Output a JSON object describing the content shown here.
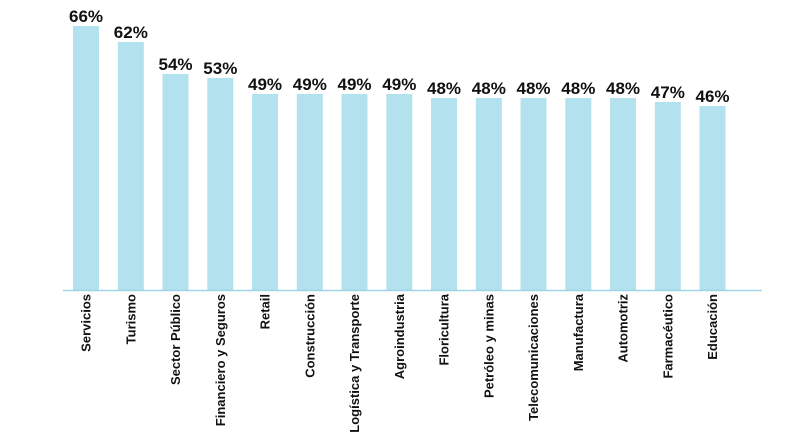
{
  "chart_data": {
    "type": "bar",
    "categories": [
      "Servicios",
      "Turismo",
      "Sector Público",
      "Financiero y Seguros",
      "Retail",
      "Construcción",
      "Logística y Transporte",
      "Agroindustria",
      "Floricultura",
      "Petróleo y minas",
      "Telecomunicaciones",
      "Manufactura",
      "Automotriz",
      "Farmacéutico",
      "Educación"
    ],
    "values": [
      66,
      62,
      54,
      53,
      49,
      49,
      49,
      49,
      48,
      48,
      48,
      48,
      48,
      47,
      46
    ],
    "value_labels": [
      "66%",
      "62%",
      "54%",
      "53%",
      "49%",
      "49%",
      "49%",
      "49%",
      "48%",
      "48%",
      "48%",
      "48%",
      "48%",
      "47%",
      "46%"
    ],
    "title": "",
    "xlabel": "",
    "ylabel": "",
    "ylim": [
      0,
      66
    ],
    "grid": false,
    "legend": "none",
    "bar_color": "#b3e1ee",
    "axis_color": "#9fd4e6"
  }
}
